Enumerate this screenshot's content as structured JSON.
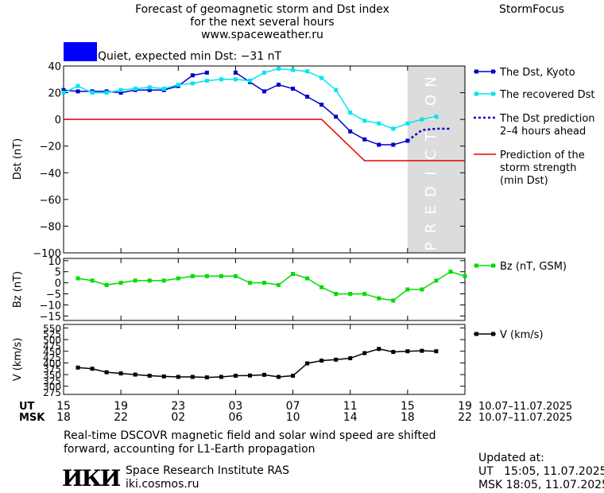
{
  "header": {
    "title_lines": [
      "Forecast of geomagnetic storm and Dst index",
      "for the next several hours",
      "www.spaceweather.ru"
    ],
    "brand": "StormFocus",
    "status": "Quiet, expected min Dst: −31 nT",
    "status_color": "#0000ff"
  },
  "chart_data": [
    {
      "type": "line",
      "ylabel": "Dst (nT)",
      "ylim": [
        -100,
        40
      ],
      "yticks": [
        40,
        20,
        0,
        -20,
        -40,
        -60,
        -80,
        -100
      ],
      "xlim_hours": [
        15,
        43
      ],
      "prediction_label": "PREDICTION",
      "series": [
        {
          "name": "The Dst, Kyoto",
          "color": "#0000cc",
          "marker": "square",
          "segments": [
            [
              [
                15,
                22
              ],
              [
                16,
                21
              ],
              [
                17,
                21
              ],
              [
                18,
                21
              ],
              [
                19,
                20
              ],
              [
                20,
                22
              ],
              [
                21,
                22
              ],
              [
                22,
                22
              ],
              [
                23,
                25
              ],
              [
                24,
                33
              ],
              [
                25,
                35
              ]
            ],
            [
              [
                27,
                35
              ],
              [
                28,
                28
              ],
              [
                29,
                21
              ],
              [
                30,
                26
              ],
              [
                31,
                23
              ],
              [
                32,
                17
              ],
              [
                33,
                11
              ],
              [
                34,
                2
              ],
              [
                35,
                -9
              ],
              [
                36,
                -15
              ],
              [
                37,
                -19
              ],
              [
                38,
                -19
              ],
              [
                39,
                -16
              ]
            ]
          ]
        },
        {
          "name": "The recovered Dst",
          "color": "#00e5ee",
          "marker": "square",
          "segments": [
            [
              [
                15,
                20
              ],
              [
                16,
                25
              ],
              [
                17,
                20
              ],
              [
                18,
                20
              ],
              [
                19,
                22
              ],
              [
                20,
                23
              ],
              [
                21,
                24
              ],
              [
                22,
                23
              ],
              [
                23,
                26
              ],
              [
                24,
                27
              ],
              [
                25,
                29
              ],
              [
                26,
                30
              ],
              [
                27,
                30
              ],
              [
                28,
                29
              ],
              [
                29,
                35
              ],
              [
                30,
                38
              ],
              [
                31,
                37
              ],
              [
                32,
                36
              ],
              [
                33,
                31
              ],
              [
                34,
                22
              ],
              [
                35,
                5
              ],
              [
                36,
                -1
              ],
              [
                37,
                -3
              ],
              [
                38,
                -7
              ],
              [
                39,
                -3
              ],
              [
                40,
                0
              ],
              [
                41,
                2
              ]
            ]
          ]
        },
        {
          "name": "The Dst prediction",
          "legend_lines": [
            "The Dst prediction",
            "2–4 hours ahead"
          ],
          "color": "#0000cc",
          "style": "dotted",
          "segments": [
            [
              [
                39,
                -16
              ],
              [
                40,
                -8
              ],
              [
                41,
                -7
              ],
              [
                42,
                -7
              ]
            ]
          ]
        },
        {
          "name": "Prediction of the storm strength",
          "legend_lines": [
            "Prediction of the",
            "storm strength",
            "(min Dst)"
          ],
          "color": "#e00000",
          "style": "solid",
          "segments": [
            [
              [
                15,
                0
              ],
              [
                33,
                0
              ],
              [
                36,
                -31
              ],
              [
                43,
                -31
              ]
            ]
          ]
        }
      ]
    },
    {
      "type": "line",
      "ylabel": "Bz (nT)",
      "ylim": [
        -17,
        11
      ],
      "yticks": [
        10,
        5,
        0,
        -5,
        -10,
        -15
      ],
      "series": [
        {
          "name": "Bz (nT, GSM)",
          "color": "#00dd00",
          "marker": "square",
          "segments": [
            [
              [
                16,
                2
              ],
              [
                17,
                1
              ],
              [
                18,
                -1
              ],
              [
                19,
                0
              ],
              [
                20,
                1
              ],
              [
                21,
                1
              ],
              [
                22,
                1
              ],
              [
                23,
                2
              ],
              [
                24,
                3
              ],
              [
                25,
                3
              ],
              [
                26,
                3
              ],
              [
                27,
                3
              ],
              [
                28,
                0
              ],
              [
                29,
                0
              ],
              [
                30,
                -1
              ],
              [
                31,
                4
              ],
              [
                32,
                2
              ],
              [
                33,
                -2
              ],
              [
                34,
                -5
              ],
              [
                35,
                -5
              ],
              [
                36,
                -5
              ],
              [
                37,
                -7
              ],
              [
                38,
                -8
              ],
              [
                39,
                -3
              ],
              [
                40,
                -3
              ],
              [
                41,
                1
              ],
              [
                42,
                5
              ],
              [
                43,
                3
              ]
            ]
          ]
        }
      ]
    },
    {
      "type": "line",
      "ylabel": "V (km/s)",
      "ylim": [
        265,
        565
      ],
      "yticks": [
        550,
        500,
        450,
        400,
        350,
        300
      ],
      "ytick_labels": [
        "550",
        "525",
        "500",
        "475",
        "450",
        "425",
        "400",
        "375",
        "350",
        "325",
        "300",
        "275"
      ],
      "series": [
        {
          "name": "V (km/s)",
          "color": "#000000",
          "marker": "square",
          "segments": [
            [
              [
                16,
                380
              ],
              [
                17,
                375
              ],
              [
                18,
                360
              ],
              [
                19,
                355
              ],
              [
                20,
                350
              ],
              [
                21,
                345
              ],
              [
                22,
                342
              ],
              [
                23,
                340
              ],
              [
                24,
                340
              ],
              [
                25,
                338
              ],
              [
                26,
                340
              ],
              [
                27,
                345
              ],
              [
                28,
                346
              ],
              [
                29,
                349
              ],
              [
                30,
                340
              ],
              [
                31,
                345
              ],
              [
                32,
                398
              ],
              [
                33,
                410
              ],
              [
                34,
                414
              ],
              [
                35,
                420
              ],
              [
                36,
                442
              ],
              [
                37,
                460
              ],
              [
                38,
                447
              ],
              [
                39,
                450
              ],
              [
                40,
                452
              ],
              [
                41,
                450
              ]
            ]
          ]
        }
      ]
    }
  ],
  "xaxis": {
    "ut_label": "UT",
    "msk_label": "MSK",
    "ut_ticks": [
      "15",
      "19",
      "23",
      "03",
      "07",
      "11",
      "15",
      "19"
    ],
    "msk_ticks": [
      "18",
      "22",
      "02",
      "06",
      "10",
      "14",
      "18",
      "22"
    ],
    "ut_range": "10.07–11.07.2025",
    "msk_range": "10.07–11.07.2025"
  },
  "footer": {
    "note_lines": [
      "Real-time DSCOVR magnetic field and solar wind speed are shifted",
      "forward, accounting for L1-Earth propagation"
    ],
    "institute": "Space Research Institute RAS",
    "site": "iki.cosmos.ru",
    "logo_text": "ИКИ",
    "updated_label": "Updated at:",
    "updated_ut": "UT   15:05, 11.07.2025",
    "updated_msk": "MSK 18:05, 11.07.2025"
  }
}
